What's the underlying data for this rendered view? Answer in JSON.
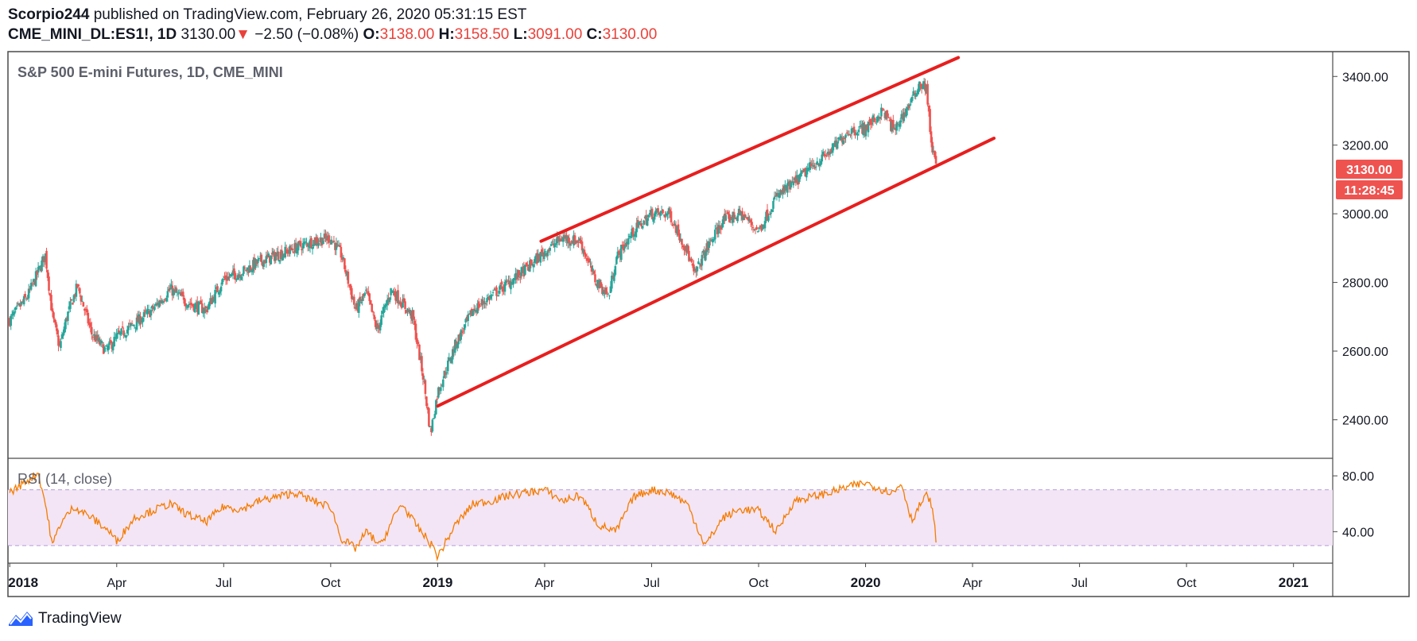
{
  "header": {
    "author": "Scorpio244",
    "published_text": " published on TradingView.com, February 26, 2020 05:31:15 EST",
    "symbol": "CME_MINI_DL:ES1!, 1D",
    "last": "3130.00",
    "change": "−2.50 (−0.08%)",
    "o_label": "O:",
    "o_value": "3138.00",
    "h_label": "H:",
    "h_value": "3158.50",
    "l_label": "L:",
    "l_value": "3091.00",
    "c_label": "C:",
    "c_value": "3130.00"
  },
  "price_badge": "3130.00",
  "countdown_badge": "11:28:45",
  "brand": "TradingView",
  "colors": {
    "up": "#26a69a",
    "down": "#ef5350",
    "channel": "#e81e1e",
    "rsi_line": "#f57c00",
    "rsi_band": "#f3e5f5",
    "badge": "#ef5350"
  },
  "chart_data": [
    {
      "type": "candlestick",
      "title": "S&P 500 E-mini Futures, 1D, CME_MINI",
      "x_ticks": [
        "2018",
        "Apr",
        "Jul",
        "Oct",
        "2019",
        "Apr",
        "Jul",
        "Oct",
        "2020",
        "Apr",
        "Jul",
        "Oct",
        "2021"
      ],
      "x_tick_months": [
        0,
        3,
        6,
        9,
        12,
        15,
        18,
        21,
        24,
        27,
        30,
        33,
        36
      ],
      "y_ticks": [
        "2400.00",
        "2600.00",
        "2800.00",
        "3000.00",
        "3200.00",
        "3400.00"
      ],
      "y_tick_values": [
        2400,
        2600,
        2800,
        3000,
        3200,
        3400
      ],
      "ylim": [
        2290,
        3470
      ],
      "xlim_months": [
        -0.05,
        37.1
      ],
      "close_series": {
        "x_months": [
          0.0,
          0.5,
          1.0,
          1.2,
          1.4,
          1.6,
          1.9,
          2.3,
          2.7,
          3.0,
          3.5,
          4.0,
          4.5,
          5.0,
          5.5,
          6.0,
          6.5,
          7.0,
          7.5,
          8.0,
          8.5,
          9.0,
          9.3,
          9.7,
          10.0,
          10.3,
          10.7,
          11.0,
          11.3,
          11.6,
          11.8,
          12.0,
          12.5,
          13.0,
          13.5,
          14.0,
          14.5,
          15.0,
          15.5,
          16.0,
          16.4,
          16.8,
          17.0,
          17.5,
          18.0,
          18.5,
          19.0,
          19.2,
          19.5,
          20.0,
          20.5,
          21.0,
          21.5,
          22.0,
          22.5,
          23.0,
          23.5,
          24.0,
          24.5,
          24.8,
          25.0,
          25.3,
          25.5,
          25.7,
          25.85,
          26.0
        ],
        "close": [
          2690,
          2760,
          2880,
          2700,
          2610,
          2700,
          2790,
          2650,
          2600,
          2640,
          2680,
          2720,
          2780,
          2740,
          2720,
          2810,
          2830,
          2860,
          2880,
          2900,
          2920,
          2930,
          2880,
          2720,
          2770,
          2660,
          2780,
          2740,
          2700,
          2520,
          2360,
          2480,
          2620,
          2720,
          2760,
          2800,
          2840,
          2890,
          2930,
          2920,
          2810,
          2760,
          2870,
          2950,
          3000,
          3000,
          2890,
          2820,
          2890,
          2980,
          3000,
          2950,
          3050,
          3090,
          3140,
          3180,
          3240,
          3250,
          3300,
          3240,
          3280,
          3330,
          3380,
          3370,
          3200,
          3130
        ]
      },
      "annotations": [
        {
          "type": "trendline",
          "label": "channel upper",
          "from": [
            14.9,
            2920
          ],
          "to": [
            26.6,
            3455
          ]
        },
        {
          "type": "trendline",
          "label": "channel lower",
          "from": [
            12.0,
            2440
          ],
          "to": [
            27.6,
            3220
          ]
        }
      ]
    },
    {
      "type": "line",
      "title": "RSI (14, close)",
      "y_ticks": [
        "40.00",
        "80.00"
      ],
      "y_tick_values": [
        40,
        80
      ],
      "ylim": [
        18,
        92
      ],
      "band": [
        30,
        70
      ],
      "series": {
        "x_months": [
          0.0,
          0.8,
          1.0,
          1.2,
          1.4,
          1.8,
          2.3,
          2.8,
          3.0,
          3.5,
          4.0,
          4.5,
          5.0,
          5.5,
          6.0,
          6.5,
          7.0,
          7.5,
          8.0,
          8.5,
          9.0,
          9.3,
          9.7,
          10.0,
          10.4,
          10.8,
          11.0,
          11.3,
          11.6,
          11.9,
          12.0,
          12.5,
          13.0,
          13.5,
          14.0,
          14.5,
          15.0,
          15.5,
          16.0,
          16.5,
          17.0,
          17.5,
          18.0,
          18.5,
          19.0,
          19.5,
          20.0,
          20.5,
          21.0,
          21.5,
          22.0,
          22.5,
          23.0,
          23.5,
          24.0,
          24.5,
          24.8,
          25.0,
          25.3,
          25.5,
          25.7,
          25.85,
          26.0
        ],
        "values": [
          68,
          82,
          60,
          30,
          45,
          58,
          50,
          40,
          33,
          50,
          55,
          60,
          52,
          47,
          58,
          56,
          62,
          65,
          68,
          62,
          58,
          35,
          28,
          40,
          30,
          52,
          60,
          48,
          38,
          28,
          22,
          45,
          60,
          62,
          66,
          68,
          70,
          62,
          66,
          45,
          40,
          65,
          70,
          68,
          60,
          30,
          50,
          56,
          55,
          40,
          62,
          65,
          68,
          72,
          75,
          70,
          68,
          75,
          48,
          58,
          66,
          60,
          30
        ]
      }
    }
  ]
}
